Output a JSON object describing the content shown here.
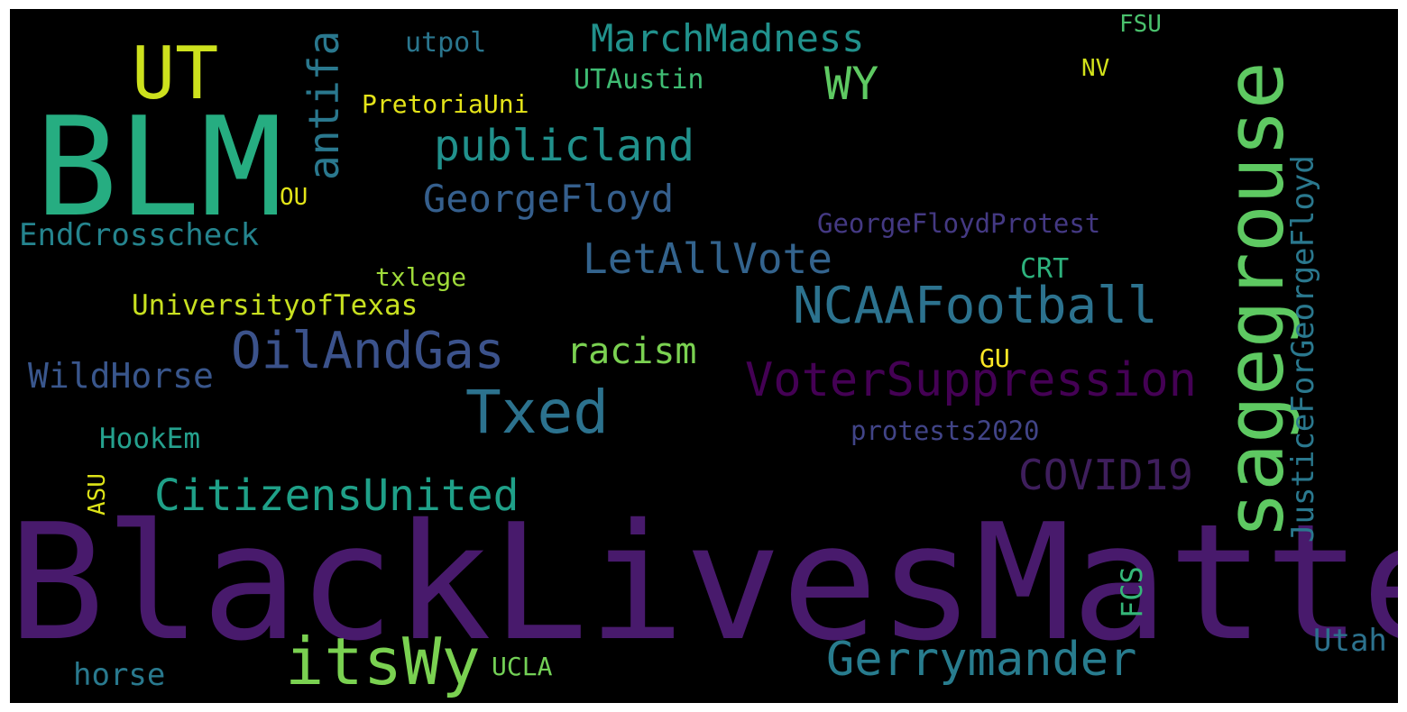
{
  "wordcloud": {
    "background": "#000000",
    "words": [
      {
        "text": "BlackLivesMatter",
        "color": "#481a6c",
        "rotated": false
      },
      {
        "text": "BLM",
        "color": "#26ad81",
        "rotated": false
      },
      {
        "text": "sagegrouse",
        "color": "#5ec962",
        "rotated": true
      },
      {
        "text": "UT",
        "color": "#cde11d",
        "rotated": false
      },
      {
        "text": "itsWy",
        "color": "#7ad151",
        "rotated": false
      },
      {
        "text": "Txed",
        "color": "#2c728e",
        "rotated": false
      },
      {
        "text": "OilAndGas",
        "color": "#3b528b",
        "rotated": false
      },
      {
        "text": "NCAAFootball",
        "color": "#2c728e",
        "rotated": false
      },
      {
        "text": "Gerrymander",
        "color": "#287c8e",
        "rotated": false
      },
      {
        "text": "VoterSuppression",
        "color": "#440154",
        "rotated": false
      },
      {
        "text": "CitizensUnited",
        "color": "#1fa088",
        "rotated": false
      },
      {
        "text": "COVID19",
        "color": "#3e1e5c",
        "rotated": false
      },
      {
        "text": "antifa",
        "color": "#2a788e",
        "rotated": true
      },
      {
        "text": "publicland",
        "color": "#21918c",
        "rotated": false
      },
      {
        "text": "WY",
        "color": "#5ec962",
        "rotated": false
      },
      {
        "text": "LetAllVote",
        "color": "#33638d",
        "rotated": false
      },
      {
        "text": "GeorgeFloyd",
        "color": "#355f8d",
        "rotated": false
      },
      {
        "text": "MarchMadness",
        "color": "#21918c",
        "rotated": false
      },
      {
        "text": "racism",
        "color": "#7ad151",
        "rotated": false
      },
      {
        "text": "JusticeForGeorgeFloyd",
        "color": "#2a788e",
        "rotated": true
      },
      {
        "text": "WildHorse",
        "color": "#39568c",
        "rotated": false
      },
      {
        "text": "EndCrosscheck",
        "color": "#25848e",
        "rotated": false
      },
      {
        "text": "UniversityofTexas",
        "color": "#c8e020",
        "rotated": false
      },
      {
        "text": "HookEm",
        "color": "#25a18e",
        "rotated": false
      },
      {
        "text": "Utah",
        "color": "#2c728e",
        "rotated": false
      },
      {
        "text": "horse",
        "color": "#29798e",
        "rotated": false
      },
      {
        "text": "UTAustin",
        "color": "#3fbc73",
        "rotated": false
      },
      {
        "text": "PretoriaUni",
        "color": "#e5e419",
        "rotated": false
      },
      {
        "text": "utpol",
        "color": "#2a768e",
        "rotated": false
      },
      {
        "text": "GeorgeFloydProtest",
        "color": "#443983",
        "rotated": false
      },
      {
        "text": "protests2020",
        "color": "#414487",
        "rotated": false
      },
      {
        "text": "txlege",
        "color": "#9fda3a",
        "rotated": false
      },
      {
        "text": "CRT",
        "color": "#2db27d",
        "rotated": false
      },
      {
        "text": "FCS",
        "color": "#35b779",
        "rotated": true
      },
      {
        "text": "UCLA",
        "color": "#73d056",
        "rotated": false
      },
      {
        "text": "ASU",
        "color": "#dde318",
        "rotated": true
      },
      {
        "text": "GU",
        "color": "#fde725",
        "rotated": false
      },
      {
        "text": "OU",
        "color": "#e2e418",
        "rotated": false
      },
      {
        "text": "FSU",
        "color": "#4ac16d",
        "rotated": false
      },
      {
        "text": "NV",
        "color": "#d2e21b",
        "rotated": false
      }
    ]
  }
}
